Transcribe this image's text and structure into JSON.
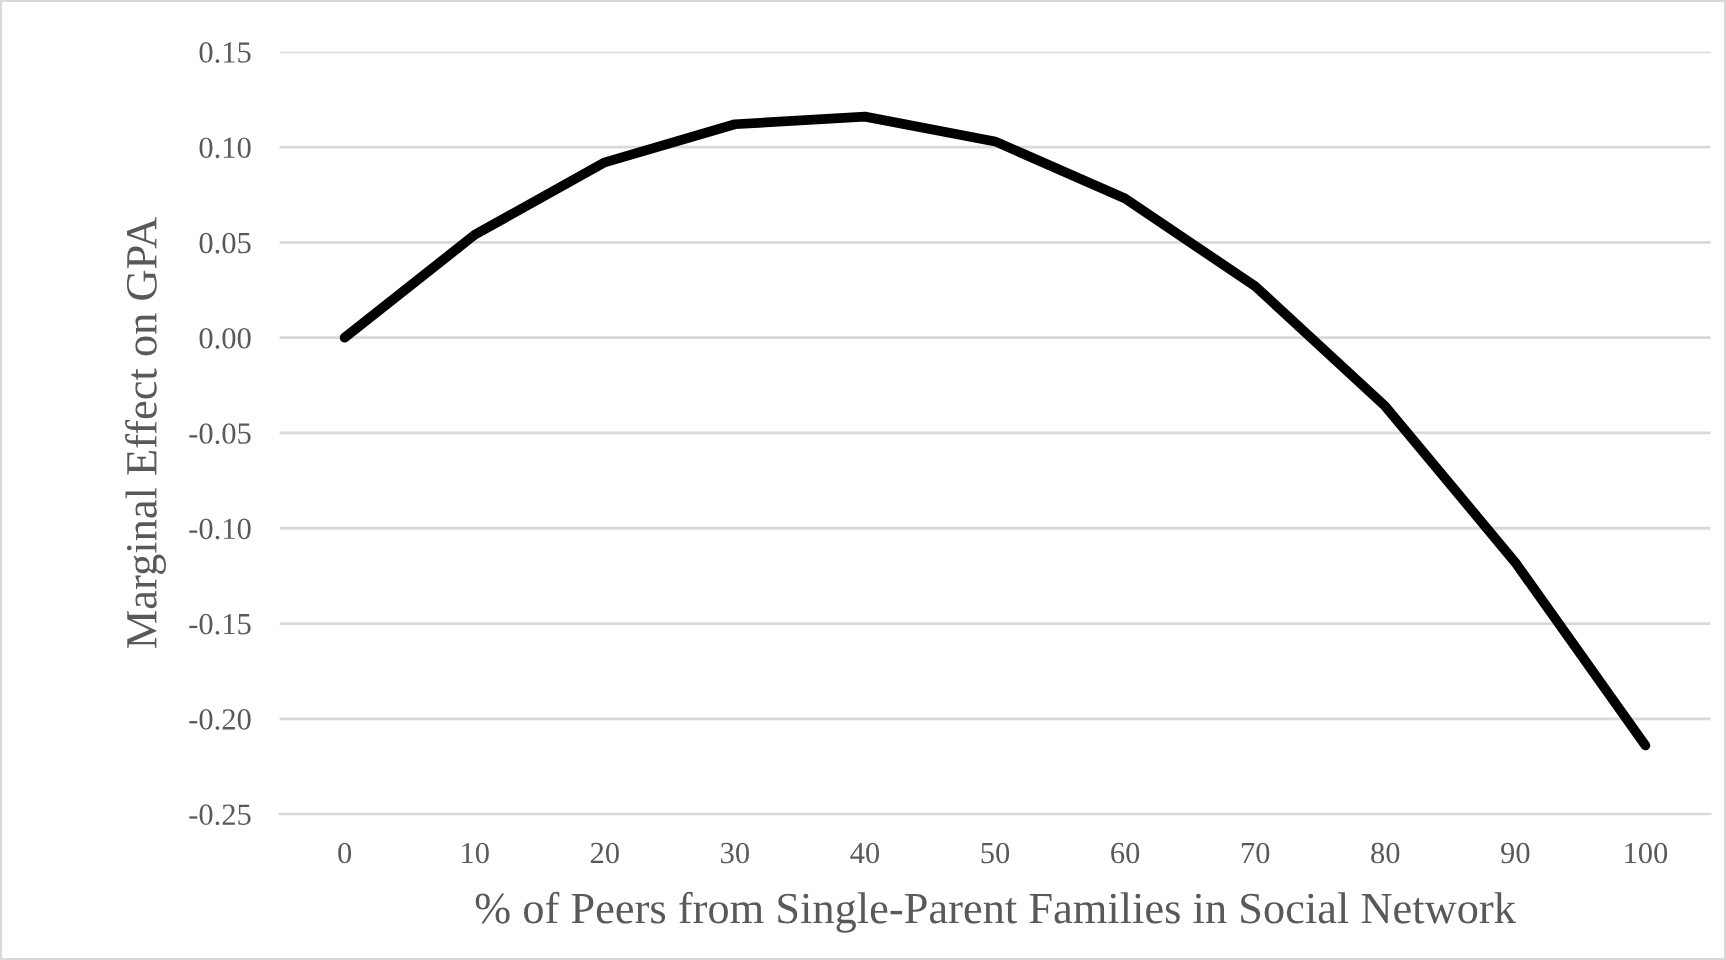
{
  "chart_data": {
    "type": "line",
    "xlabel": "% of Peers from Single-Parent Families in Social Network",
    "ylabel": "Marginal Effect on GPA",
    "categories": [
      "0",
      "10",
      "20",
      "30",
      "40",
      "50",
      "60",
      "70",
      "80",
      "90",
      "100"
    ],
    "series": [
      {
        "color": "#000000",
        "values": [
          0.0,
          0.054,
          0.092,
          0.112,
          0.116,
          0.103,
          0.073,
          0.027,
          -0.036,
          -0.118,
          -0.214
        ]
      }
    ],
    "ylim": [
      -0.25,
      0.15
    ],
    "yticks": [
      {
        "value": -0.25,
        "label": "-0.25"
      },
      {
        "value": -0.2,
        "label": "-0.20"
      },
      {
        "value": -0.15,
        "label": "-0.15"
      },
      {
        "value": -0.1,
        "label": "-0.10"
      },
      {
        "value": -0.05,
        "label": "-0.05"
      },
      {
        "value": 0,
        "label": "0.00"
      },
      {
        "value": 0.05,
        "label": "0.05"
      },
      {
        "value": 0.1,
        "label": "0.10"
      },
      {
        "value": 0.15,
        "label": "0.15"
      }
    ],
    "grid": "y",
    "marker": "none",
    "line_style": "solid"
  }
}
